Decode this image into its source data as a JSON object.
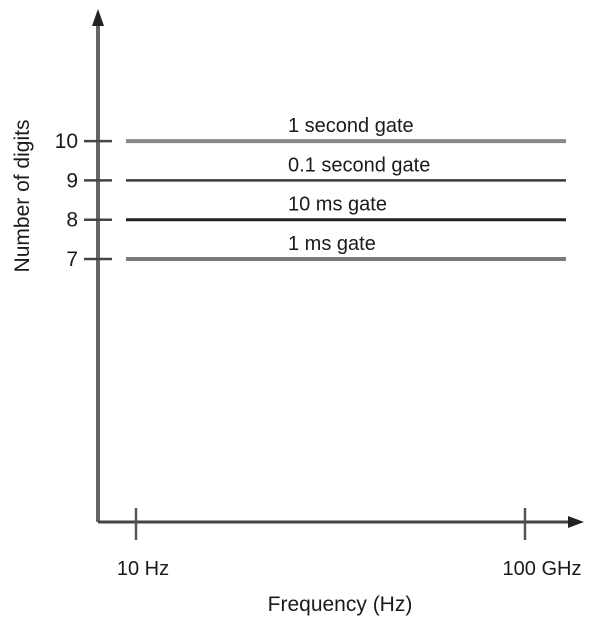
{
  "chart_data": {
    "type": "line",
    "title": "",
    "xlabel": "Frequency (Hz)",
    "ylabel": "Number of digits",
    "y_ticks": [
      7,
      8,
      9,
      10
    ],
    "x_ticks": [
      "10 Hz",
      "100 GHz"
    ],
    "x_range": [
      "10 Hz",
      "100 GHz"
    ],
    "ylim": [
      0,
      13
    ],
    "grid": false,
    "series": [
      {
        "name": "1 second gate",
        "x": [
          "10 Hz",
          "100 GHz"
        ],
        "y": [
          10,
          10
        ]
      },
      {
        "name": "0.1 second gate",
        "x": [
          "10 Hz",
          "100 GHz"
        ],
        "y": [
          9,
          9
        ]
      },
      {
        "name": "10 ms gate",
        "x": [
          "10 Hz",
          "100 GHz"
        ],
        "y": [
          8,
          8
        ]
      },
      {
        "name": "1 ms gate",
        "x": [
          "10 Hz",
          "100 GHz"
        ],
        "y": [
          7,
          7
        ]
      }
    ],
    "colors": {
      "axis": "#555555",
      "lines": "#333333",
      "lines_light": "#888888"
    }
  }
}
